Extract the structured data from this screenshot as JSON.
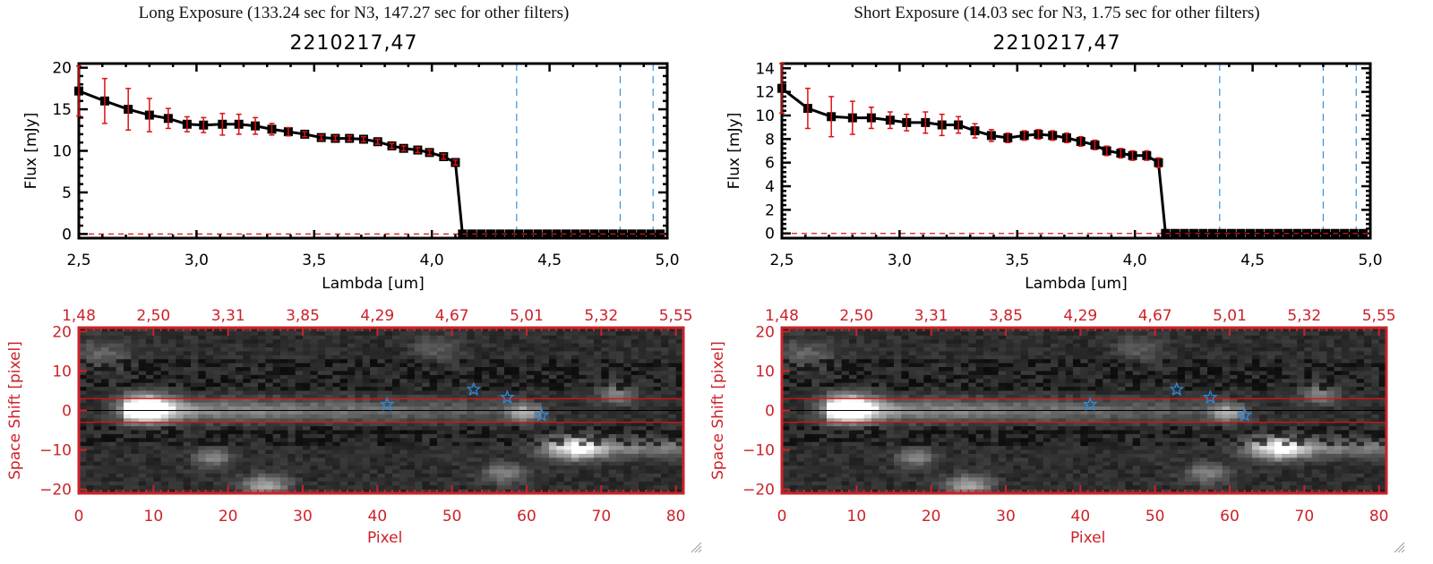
{
  "colors": {
    "spectrum_line": "#000000",
    "error_bar": "#e01010",
    "filter_line": "#3a8fdb",
    "zero_line": "#e01010",
    "image_axis": "#cc2229",
    "aperture_line": "#e01010",
    "trace_line": "#000000",
    "star_marker": "#2a8ae0"
  },
  "panels": [
    {
      "id": "long",
      "exposure_title": "Long Exposure (133.24 sec for N3, 147.27 sec for other filters)",
      "object_title": "2210217,47"
    },
    {
      "id": "short",
      "exposure_title": "Short Exposure (14.03 sec for N3, 1.75 sec for other filters)",
      "object_title": "2210217,47"
    }
  ],
  "chart_data": [
    {
      "type": "line",
      "panel": "long",
      "title": "2210217,47",
      "xlabel": "Lambda [um]",
      "ylabel": "Flux [mJy]",
      "xlim": [
        2.5,
        5.0
      ],
      "ylim": [
        -0.5,
        20.5
      ],
      "xticks": [
        "2,5",
        "3,0",
        "3,5",
        "4,0",
        "4,5",
        "5,0"
      ],
      "xtick_values": [
        2.5,
        3.0,
        3.5,
        4.0,
        4.5,
        5.0
      ],
      "yticks": [
        "0",
        "5",
        "10",
        "15",
        "20"
      ],
      "ytick_values": [
        0,
        5,
        10,
        15,
        20
      ],
      "filter_lines_um": [
        4.36,
        4.8,
        4.94
      ],
      "series": [
        {
          "name": "flux",
          "x": [
            2.5,
            2.61,
            2.71,
            2.8,
            2.88,
            2.96,
            3.03,
            3.11,
            3.18,
            3.25,
            3.32,
            3.39,
            3.46,
            3.53,
            3.59,
            3.65,
            3.71,
            3.77,
            3.83,
            3.88,
            3.94,
            3.99,
            4.05,
            4.1,
            4.13,
            4.17,
            4.21,
            4.25,
            4.29,
            4.33,
            4.37,
            4.41,
            4.45,
            4.49,
            4.53,
            4.57,
            4.61,
            4.65,
            4.69,
            4.73,
            4.77,
            4.81,
            4.85,
            4.89,
            4.93,
            4.97
          ],
          "y": [
            17.2,
            16.0,
            15.0,
            14.3,
            13.9,
            13.2,
            13.1,
            13.2,
            13.2,
            13.0,
            12.6,
            12.3,
            12.0,
            11.6,
            11.5,
            11.5,
            11.4,
            11.1,
            10.6,
            10.3,
            10.1,
            9.8,
            9.3,
            8.6,
            0,
            0,
            0,
            0,
            0,
            0,
            0,
            0,
            0,
            0,
            0,
            0,
            0,
            0,
            0,
            0,
            0,
            0,
            0,
            0,
            0,
            0
          ],
          "yerr": [
            3.0,
            2.7,
            2.5,
            2.0,
            1.2,
            0.9,
            0.9,
            1.3,
            1.2,
            1.0,
            0.7,
            0.5,
            0.3,
            0.3,
            0.3,
            0.3,
            0.3,
            0.3,
            0.3,
            0.3,
            0.3,
            0.3,
            0.3,
            0.3,
            0,
            0,
            0,
            0,
            0,
            0,
            0,
            0,
            0,
            0,
            0,
            0,
            0,
            0,
            0,
            0,
            0,
            0,
            0,
            0,
            0,
            0
          ]
        }
      ]
    },
    {
      "type": "heatmap",
      "panel": "long",
      "xlabel": "Pixel",
      "ylabel": "Space Shift [pixel]",
      "xlim": [
        0,
        81
      ],
      "ylim": [
        -21,
        21
      ],
      "xticks": [
        "0",
        "10",
        "20",
        "30",
        "40",
        "50",
        "60",
        "70",
        "80"
      ],
      "xtick_values": [
        0,
        10,
        20,
        30,
        40,
        50,
        60,
        70,
        80
      ],
      "top_ticks": [
        "1,48",
        "2,50",
        "3,31",
        "3,85",
        "4,29",
        "4,67",
        "5,01",
        "5,32",
        "5,55"
      ],
      "yticks": [
        "20",
        "10",
        "0",
        "-10",
        "-20"
      ],
      "ytick_values": [
        20,
        10,
        0,
        -10,
        -20
      ],
      "aperture_y": [
        3,
        -3
      ],
      "trace_y": 0,
      "stars": [
        {
          "x": 41.3,
          "y": 1.5
        },
        {
          "x": 52.9,
          "y": 5.3
        },
        {
          "x": 57.4,
          "y": 3.3
        },
        {
          "x": 62.0,
          "y": -1.2
        }
      ]
    },
    {
      "type": "line",
      "panel": "short",
      "title": "2210217,47",
      "xlabel": "Lambda [um]",
      "ylabel": "Flux [mJy]",
      "xlim": [
        2.5,
        5.0
      ],
      "ylim": [
        -0.4,
        14.4
      ],
      "xticks": [
        "2,5",
        "3,0",
        "3,5",
        "4,0",
        "4,5",
        "5,0"
      ],
      "xtick_values": [
        2.5,
        3.0,
        3.5,
        4.0,
        4.5,
        5.0
      ],
      "yticks": [
        "0",
        "2",
        "4",
        "6",
        "8",
        "10",
        "12",
        "14"
      ],
      "ytick_values": [
        0,
        2,
        4,
        6,
        8,
        10,
        12,
        14
      ],
      "filter_lines_um": [
        4.36,
        4.8,
        4.94
      ],
      "series": [
        {
          "name": "flux",
          "x": [
            2.5,
            2.61,
            2.71,
            2.8,
            2.88,
            2.96,
            3.03,
            3.11,
            3.18,
            3.25,
            3.32,
            3.39,
            3.46,
            3.53,
            3.59,
            3.65,
            3.71,
            3.77,
            3.83,
            3.88,
            3.94,
            3.99,
            4.05,
            4.1,
            4.13,
            4.17,
            4.21,
            4.25,
            4.29,
            4.33,
            4.37,
            4.41,
            4.45,
            4.49,
            4.53,
            4.57,
            4.61,
            4.65,
            4.69,
            4.73,
            4.77,
            4.81,
            4.85,
            4.89,
            4.93,
            4.97
          ],
          "y": [
            12.3,
            10.6,
            9.9,
            9.8,
            9.8,
            9.6,
            9.4,
            9.4,
            9.2,
            9.2,
            8.7,
            8.3,
            8.1,
            8.3,
            8.4,
            8.3,
            8.1,
            7.8,
            7.5,
            7.0,
            6.8,
            6.6,
            6.6,
            6.0,
            0,
            0,
            0,
            0,
            0,
            0,
            0,
            0,
            0,
            0,
            0,
            0,
            0,
            0,
            0,
            0,
            0,
            0,
            0,
            0,
            0,
            0
          ],
          "yerr": [
            2.1,
            1.7,
            1.7,
            1.4,
            0.9,
            0.7,
            0.7,
            0.9,
            0.9,
            0.7,
            0.6,
            0.5,
            0.4,
            0.4,
            0.4,
            0.4,
            0.4,
            0.4,
            0.4,
            0.4,
            0.4,
            0.4,
            0.4,
            0.4,
            0,
            0,
            0,
            0,
            0,
            0,
            0,
            0,
            0,
            0,
            0,
            0,
            0,
            0,
            0,
            0,
            0,
            0,
            0,
            0,
            0,
            0
          ]
        }
      ]
    },
    {
      "type": "heatmap",
      "panel": "short",
      "xlabel": "Pixel",
      "ylabel": "Space Shift [pixel]",
      "xlim": [
        0,
        81
      ],
      "ylim": [
        -21,
        21
      ],
      "xticks": [
        "0",
        "10",
        "20",
        "30",
        "40",
        "50",
        "60",
        "70",
        "80"
      ],
      "xtick_values": [
        0,
        10,
        20,
        30,
        40,
        50,
        60,
        70,
        80
      ],
      "top_ticks": [
        "1,48",
        "2,50",
        "3,31",
        "3,85",
        "4,29",
        "4,67",
        "5,01",
        "5,32",
        "5,55"
      ],
      "yticks": [
        "20",
        "10",
        "0",
        "-10",
        "-20"
      ],
      "ytick_values": [
        20,
        10,
        0,
        -10,
        -20
      ],
      "aperture_y": [
        3,
        -3
      ],
      "trace_y": 0,
      "stars": [
        {
          "x": 41.3,
          "y": 1.5
        },
        {
          "x": 52.9,
          "y": 5.3
        },
        {
          "x": 57.4,
          "y": 3.3
        },
        {
          "x": 62.0,
          "y": -1.2
        }
      ]
    }
  ]
}
